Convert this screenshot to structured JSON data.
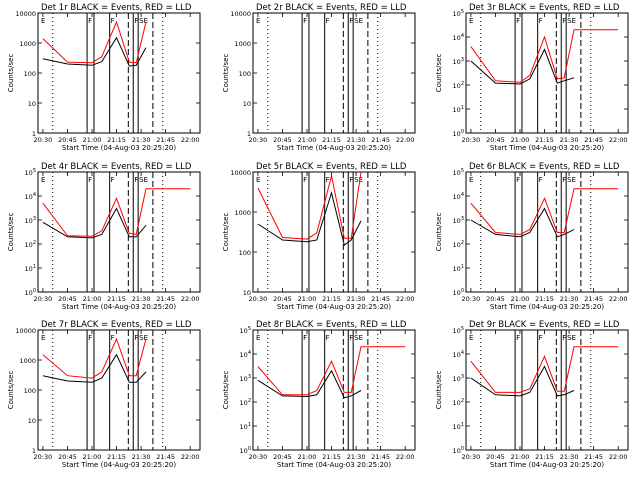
{
  "page": {
    "x_axis_label": "Start Time (04-Aug-03 20:25:20)"
  },
  "chart_data": [
    {
      "type": "line",
      "title": "Det 1r BLACK = Events, RED = LLD",
      "ylabel": "Counts/sec",
      "xlabel": "Start Time (04-Aug-03 20:25:20)",
      "x_ticks": [
        "20:30",
        "20:45",
        "21:00",
        "21:15",
        "21:30",
        "21:45",
        "22:00"
      ],
      "y_ticks": [
        "1",
        "10",
        "100",
        "1000",
        "10000"
      ],
      "ylim_log10": [
        0,
        4
      ],
      "flags": [
        "E",
        "F",
        "F",
        "F",
        "SE"
      ],
      "series": [
        {
          "name": "Events",
          "color": "#000000",
          "values": [
            [
              20.5,
              300
            ],
            [
              20.75,
              200
            ],
            [
              21.0,
              180
            ],
            [
              21.1,
              240
            ],
            [
              21.25,
              1500
            ],
            [
              21.38,
              170
            ],
            [
              21.45,
              180
            ],
            [
              21.55,
              700
            ]
          ]
        },
        {
          "name": "LLD",
          "color": "#ff0000",
          "values": [
            [
              20.5,
              1400
            ],
            [
              20.75,
              230
            ],
            [
              21.0,
              220
            ],
            [
              21.1,
              350
            ],
            [
              21.25,
              5000
            ],
            [
              21.38,
              230
            ],
            [
              21.45,
              220
            ],
            [
              21.55,
              5000
            ]
          ]
        }
      ]
    },
    {
      "type": "line",
      "title": "Det 2r BLACK = Events, RED = LLD",
      "ylabel": "Counts/sec",
      "xlabel": "Start Time (04-Aug-03 20:25:20)",
      "x_ticks": [
        "20:30",
        "20:45",
        "21:00",
        "21:15",
        "21:30",
        "21:45",
        "22:00"
      ],
      "y_ticks": [
        "1",
        "10",
        "100",
        "1000",
        "10000"
      ],
      "ylim_log10": [
        0,
        4
      ],
      "flags": [
        "E",
        "F",
        "F",
        "F",
        "SE"
      ],
      "series": []
    },
    {
      "type": "line",
      "title": "Det 3r BLACK = Events, RED = LLD",
      "ylabel": "Counts/sec",
      "xlabel": "Start Time (04-Aug-03 20:25:20)",
      "x_ticks": [
        "20:30",
        "20:45",
        "21:00",
        "21:15",
        "21:30",
        "21:45",
        "22:00"
      ],
      "y_ticks": [
        "10^0",
        "10^1",
        "10^2",
        "10^3",
        "10^4",
        "10^5"
      ],
      "ylim_log10": [
        0,
        5
      ],
      "flags": [
        "E",
        "F",
        "F",
        "F",
        "SE"
      ],
      "series": [
        {
          "name": "Events",
          "color": "#000000",
          "values": [
            [
              20.5,
              1000
            ],
            [
              20.75,
              120
            ],
            [
              21.0,
              110
            ],
            [
              21.1,
              180
            ],
            [
              21.25,
              3000
            ],
            [
              21.38,
              120
            ],
            [
              21.45,
              150
            ],
            [
              21.55,
              200
            ]
          ]
        },
        {
          "name": "LLD",
          "color": "#ff0000",
          "values": [
            [
              20.5,
              4000
            ],
            [
              20.75,
              150
            ],
            [
              21.0,
              130
            ],
            [
              21.1,
              250
            ],
            [
              21.25,
              10000
            ],
            [
              21.38,
              180
            ],
            [
              21.45,
              200
            ],
            [
              21.55,
              20000
            ],
            [
              22.0,
              20000
            ]
          ]
        }
      ]
    },
    {
      "type": "line",
      "title": "Det 4r BLACK = Events, RED = LLD",
      "ylabel": "Counts/sec",
      "xlabel": "Start Time (04-Aug-03 20:25:20)",
      "x_ticks": [
        "20:30",
        "20:45",
        "21:00",
        "21:15",
        "21:30",
        "21:45",
        "22:00"
      ],
      "y_ticks": [
        "10^0",
        "10^1",
        "10^2",
        "10^3",
        "10^4",
        "10^5"
      ],
      "ylim_log10": [
        0,
        5
      ],
      "flags": [
        "E",
        "F",
        "F",
        "F",
        "SE"
      ],
      "series": [
        {
          "name": "Events",
          "color": "#000000",
          "values": [
            [
              20.5,
              800
            ],
            [
              20.75,
              200
            ],
            [
              21.0,
              180
            ],
            [
              21.1,
              250
            ],
            [
              21.25,
              3000
            ],
            [
              21.38,
              200
            ],
            [
              21.45,
              200
            ],
            [
              21.55,
              600
            ]
          ]
        },
        {
          "name": "LLD",
          "color": "#ff0000",
          "values": [
            [
              20.5,
              5000
            ],
            [
              20.75,
              220
            ],
            [
              21.0,
              210
            ],
            [
              21.1,
              350
            ],
            [
              21.25,
              8000
            ],
            [
              21.38,
              280
            ],
            [
              21.45,
              250
            ],
            [
              21.55,
              20000
            ],
            [
              22.0,
              20000
            ]
          ]
        }
      ]
    },
    {
      "type": "line",
      "title": "Det 5r BLACK = Events, RED = LLD",
      "ylabel": "Counts/sec",
      "xlabel": "Start Time (04-Aug-03 20:25:20)",
      "x_ticks": [
        "20:30",
        "20:45",
        "21:00",
        "21:15",
        "21:30",
        "21:45",
        "22:00"
      ],
      "y_ticks": [
        "10",
        "100",
        "1000",
        "10000"
      ],
      "ylim_log10": [
        1,
        4
      ],
      "flags": [
        "E",
        "F",
        "F",
        "F",
        "SE"
      ],
      "series": [
        {
          "name": "Events",
          "color": "#000000",
          "values": [
            [
              20.5,
              500
            ],
            [
              20.75,
              200
            ],
            [
              21.0,
              180
            ],
            [
              21.1,
              200
            ],
            [
              21.25,
              3000
            ],
            [
              21.38,
              150
            ],
            [
              21.45,
              200
            ],
            [
              21.55,
              600
            ]
          ]
        },
        {
          "name": "LLD",
          "color": "#ff0000",
          "values": [
            [
              20.5,
              4000
            ],
            [
              20.75,
              230
            ],
            [
              21.0,
              210
            ],
            [
              21.1,
              300
            ],
            [
              21.25,
              8000
            ],
            [
              21.38,
              220
            ],
            [
              21.45,
              220
            ],
            [
              21.55,
              10000
            ]
          ]
        }
      ]
    },
    {
      "type": "line",
      "title": "Det 6r BLACK = Events, RED = LLD",
      "ylabel": "Counts/sec",
      "xlabel": "Start Time (04-Aug-03 20:25:20)",
      "x_ticks": [
        "20:30",
        "20:45",
        "21:00",
        "21:15",
        "21:30",
        "21:45",
        "22:00"
      ],
      "y_ticks": [
        "10^0",
        "10^1",
        "10^2",
        "10^3",
        "10^4",
        "10^5"
      ],
      "ylim_log10": [
        0,
        5
      ],
      "flags": [
        "E",
        "F",
        "F",
        "F",
        "SE"
      ],
      "series": [
        {
          "name": "Events",
          "color": "#000000",
          "values": [
            [
              20.5,
              1000
            ],
            [
              20.75,
              250
            ],
            [
              21.0,
              200
            ],
            [
              21.1,
              300
            ],
            [
              21.25,
              3000
            ],
            [
              21.38,
              200
            ],
            [
              21.45,
              250
            ],
            [
              21.55,
              400
            ]
          ]
        },
        {
          "name": "LLD",
          "color": "#ff0000",
          "values": [
            [
              20.5,
              5000
            ],
            [
              20.75,
              300
            ],
            [
              21.0,
              250
            ],
            [
              21.1,
              400
            ],
            [
              21.25,
              8000
            ],
            [
              21.38,
              300
            ],
            [
              21.45,
              300
            ],
            [
              21.55,
              20000
            ],
            [
              22.0,
              20000
            ]
          ]
        }
      ]
    },
    {
      "type": "line",
      "title": "Det 7r BLACK = Events, RED = LLD",
      "ylabel": "Counts/sec",
      "xlabel": "Start Time (04-Aug-03 20:25:20)",
      "x_ticks": [
        "20:30",
        "20:45",
        "21:00",
        "21:15",
        "21:30",
        "21:45",
        "22:00"
      ],
      "y_ticks": [
        "1",
        "10",
        "100",
        "1000",
        "10000"
      ],
      "ylim_log10": [
        0,
        4
      ],
      "flags": [
        "E",
        "F",
        "F",
        "F",
        "SE"
      ],
      "series": [
        {
          "name": "Events",
          "color": "#000000",
          "values": [
            [
              20.5,
              300
            ],
            [
              20.75,
              200
            ],
            [
              21.0,
              180
            ],
            [
              21.1,
              250
            ],
            [
              21.25,
              1500
            ],
            [
              21.38,
              180
            ],
            [
              21.45,
              180
            ],
            [
              21.55,
              400
            ]
          ]
        },
        {
          "name": "LLD",
          "color": "#ff0000",
          "values": [
            [
              20.5,
              1500
            ],
            [
              20.75,
              300
            ],
            [
              21.0,
              250
            ],
            [
              21.1,
              400
            ],
            [
              21.25,
              5000
            ],
            [
              21.38,
              300
            ],
            [
              21.45,
              300
            ],
            [
              21.55,
              5000
            ]
          ]
        }
      ]
    },
    {
      "type": "line",
      "title": "Det 8r BLACK = Events, RED = LLD",
      "ylabel": "Counts/sec",
      "xlabel": "Start Time (04-Aug-03 20:25:20)",
      "x_ticks": [
        "20:30",
        "20:45",
        "21:00",
        "21:15",
        "21:30",
        "21:45",
        "22:00"
      ],
      "y_ticks": [
        "10^0",
        "10^1",
        "10^2",
        "10^3",
        "10^4",
        "10^5"
      ],
      "ylim_log10": [
        0,
        5
      ],
      "flags": [
        "E",
        "F",
        "F",
        "F",
        "SE"
      ],
      "series": [
        {
          "name": "Events",
          "color": "#000000",
          "values": [
            [
              20.5,
              800
            ],
            [
              20.75,
              180
            ],
            [
              21.0,
              170
            ],
            [
              21.1,
              200
            ],
            [
              21.25,
              2000
            ],
            [
              21.38,
              150
            ],
            [
              21.45,
              180
            ],
            [
              21.55,
              300
            ]
          ]
        },
        {
          "name": "LLD",
          "color": "#ff0000",
          "values": [
            [
              20.5,
              3000
            ],
            [
              20.75,
              200
            ],
            [
              21.0,
              200
            ],
            [
              21.1,
              300
            ],
            [
              21.25,
              5000
            ],
            [
              21.38,
              250
            ],
            [
              21.45,
              250
            ],
            [
              21.55,
              20000
            ],
            [
              22.0,
              20000
            ]
          ]
        }
      ]
    },
    {
      "type": "line",
      "title": "Det 9r BLACK = Events, RED = LLD",
      "ylabel": "Counts/sec",
      "xlabel": "Start Time (04-Aug-03 20:25:20)",
      "x_ticks": [
        "20:30",
        "20:45",
        "21:00",
        "21:15",
        "21:30",
        "21:45",
        "22:00"
      ],
      "y_ticks": [
        "10^0",
        "10^1",
        "10^2",
        "10^3",
        "10^4",
        "10^5"
      ],
      "ylim_log10": [
        0,
        5
      ],
      "flags": [
        "E",
        "F",
        "F",
        "F",
        "SE"
      ],
      "series": [
        {
          "name": "Events",
          "color": "#000000",
          "values": [
            [
              20.5,
              1000
            ],
            [
              20.75,
              200
            ],
            [
              21.0,
              180
            ],
            [
              21.1,
              250
            ],
            [
              21.25,
              3000
            ],
            [
              21.38,
              180
            ],
            [
              21.45,
              200
            ],
            [
              21.55,
              300
            ]
          ]
        },
        {
          "name": "LLD",
          "color": "#ff0000",
          "values": [
            [
              20.5,
              5000
            ],
            [
              20.75,
              250
            ],
            [
              21.0,
              250
            ],
            [
              21.1,
              350
            ],
            [
              21.25,
              8000
            ],
            [
              21.38,
              280
            ],
            [
              21.45,
              280
            ],
            [
              21.55,
              20000
            ],
            [
              22.0,
              20000
            ]
          ]
        }
      ]
    }
  ]
}
